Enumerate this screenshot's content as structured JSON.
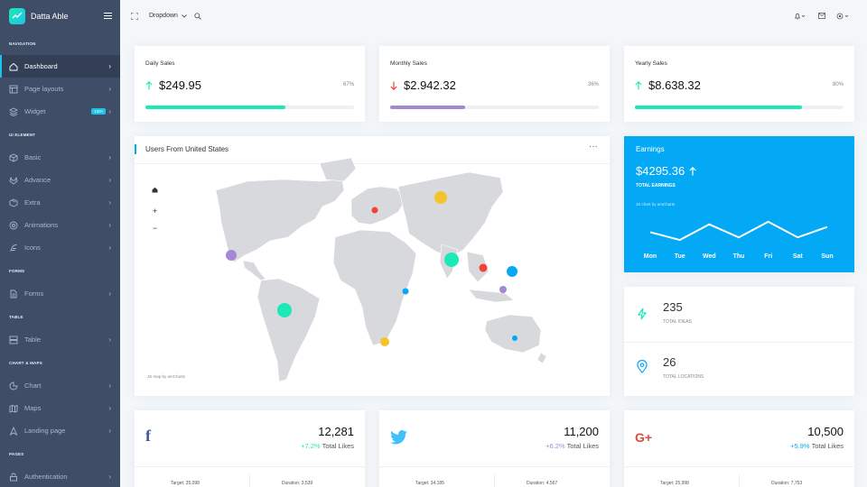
{
  "brand": {
    "name": "Datta Able"
  },
  "sidebar": {
    "sections": [
      {
        "caption": "Navigation",
        "items": [
          {
            "label": "Dashboard",
            "icon": "home-icon",
            "active": true
          },
          {
            "label": "Page layouts",
            "icon": "layout-icon"
          },
          {
            "label": "Widget",
            "icon": "layers-icon",
            "badge": "100+"
          }
        ]
      },
      {
        "caption": "UI Element",
        "items": [
          {
            "label": "Basic",
            "icon": "box-icon"
          },
          {
            "label": "Advance",
            "icon": "gitlab-icon"
          },
          {
            "label": "Extra",
            "icon": "package-icon"
          },
          {
            "label": "Animations",
            "icon": "aperture-icon"
          },
          {
            "label": "Icons",
            "icon": "feather-icon"
          }
        ]
      },
      {
        "caption": "Forms",
        "items": [
          {
            "label": "Forms",
            "icon": "file-text-icon"
          }
        ]
      },
      {
        "caption": "Table",
        "items": [
          {
            "label": "Table",
            "icon": "server-icon"
          }
        ]
      },
      {
        "caption": "Chart & Maps",
        "items": [
          {
            "label": "Chart",
            "icon": "pie-chart-icon"
          },
          {
            "label": "Maps",
            "icon": "map-icon"
          },
          {
            "label": "Landing page",
            "icon": "navigation-icon"
          }
        ]
      },
      {
        "caption": "Pages",
        "items": [
          {
            "label": "Authentication",
            "icon": "lock-icon"
          }
        ]
      }
    ]
  },
  "header": {
    "dropdown_label": "Dropdown"
  },
  "sales": [
    {
      "title": "Daily Sales",
      "value": "$249.95",
      "percent": "67%",
      "trend": "up",
      "fill": 0.67,
      "color": "#1de9b6"
    },
    {
      "title": "Monthly Sales",
      "value": "$2.942.32",
      "percent": "36%",
      "trend": "down",
      "fill": 0.36,
      "color": "#a389d4"
    },
    {
      "title": "Yearly Sales",
      "value": "$8.638.32",
      "percent": "80%",
      "trend": "up",
      "fill": 0.8,
      "color": "#1de9b6"
    }
  ],
  "map_card": {
    "title": "Users From United States",
    "more": "···",
    "credit": "JS map by amCharts"
  },
  "earnings": {
    "title": "Earnings",
    "value": "$4295.36",
    "label": "TOTAL EARNINGS",
    "credit": "JS chart by amCharts",
    "chart_data": {
      "type": "line",
      "categories": [
        "Mon",
        "Tue",
        "Wed",
        "Thu",
        "Fri",
        "Sat",
        "Sun"
      ],
      "values": [
        60,
        45,
        75,
        50,
        80,
        50,
        70
      ]
    }
  },
  "stats": [
    {
      "value": "235",
      "label": "TOTAL IDEAS",
      "icon": "zap-icon",
      "color": "#1de9b6"
    },
    {
      "value": "26",
      "label": "TOTAL LOCATIONS",
      "icon": "map-pin-icon",
      "color": "#04a9f5"
    }
  ],
  "social": [
    {
      "network": "facebook",
      "glyph": "f",
      "color": "#3b5998",
      "value": "12,281",
      "change": "+7.2%",
      "change_color": "#1de9b6",
      "label": "Total Likes",
      "target": "Target: 35,098",
      "duration": "Duration: 3,539"
    },
    {
      "network": "twitter",
      "glyph": "🐦",
      "color": "#42c0fb",
      "value": "11,200",
      "change": "+6.2%",
      "change_color": "#a389d4",
      "label": "Total Likes",
      "target": "Target: 34,185",
      "duration": "Duration: 4,567"
    },
    {
      "network": "google-plus",
      "glyph": "G+",
      "color": "#dd4b39",
      "value": "10,500",
      "change": "+5.9%",
      "change_color": "#04a9f5",
      "label": "Total Likes",
      "target": "Target: 25,998",
      "duration": "Duration: 7,753"
    }
  ]
}
